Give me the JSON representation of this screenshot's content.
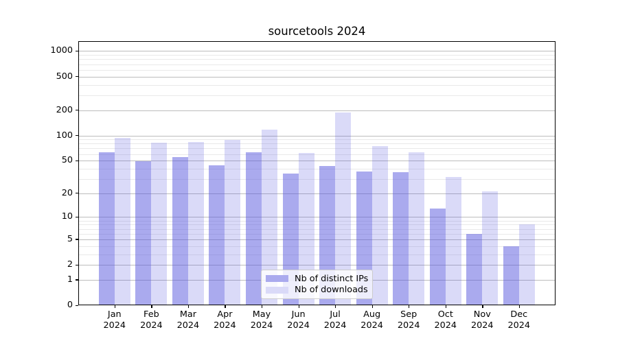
{
  "chart_data": {
    "type": "bar",
    "title": "sourcetools 2024",
    "categories": [
      "Jan",
      "Feb",
      "Mar",
      "Apr",
      "May",
      "Jun",
      "Jul",
      "Aug",
      "Sep",
      "Oct",
      "Nov",
      "Dec"
    ],
    "year_label": "2024",
    "series": [
      {
        "name": "Nb of distinct IPs",
        "values": [
          63,
          49,
          55,
          44,
          63,
          35,
          43,
          37,
          36,
          13,
          6,
          4
        ],
        "fill": "rgba(85,85,221,0.5)",
        "swatch": "#aaaaee"
      },
      {
        "name": "Nb of downloads",
        "values": [
          93,
          82,
          84,
          89,
          118,
          62,
          188,
          75,
          63,
          32,
          21,
          8
        ],
        "fill": "rgba(85,85,221,0.22)",
        "swatch": "#dadaf8"
      }
    ],
    "y_axis": {
      "scale": "log1p",
      "major_ticks": [
        1000,
        500,
        200,
        100,
        50,
        20,
        10,
        5,
        2,
        1,
        0
      ],
      "minor_ticks": [
        900,
        800,
        700,
        600,
        400,
        300,
        90,
        80,
        70,
        60,
        40,
        30,
        9,
        8,
        7,
        6,
        4,
        3
      ],
      "ylim": [
        0,
        1300
      ]
    },
    "legend_position": "lower center",
    "grid": true
  }
}
